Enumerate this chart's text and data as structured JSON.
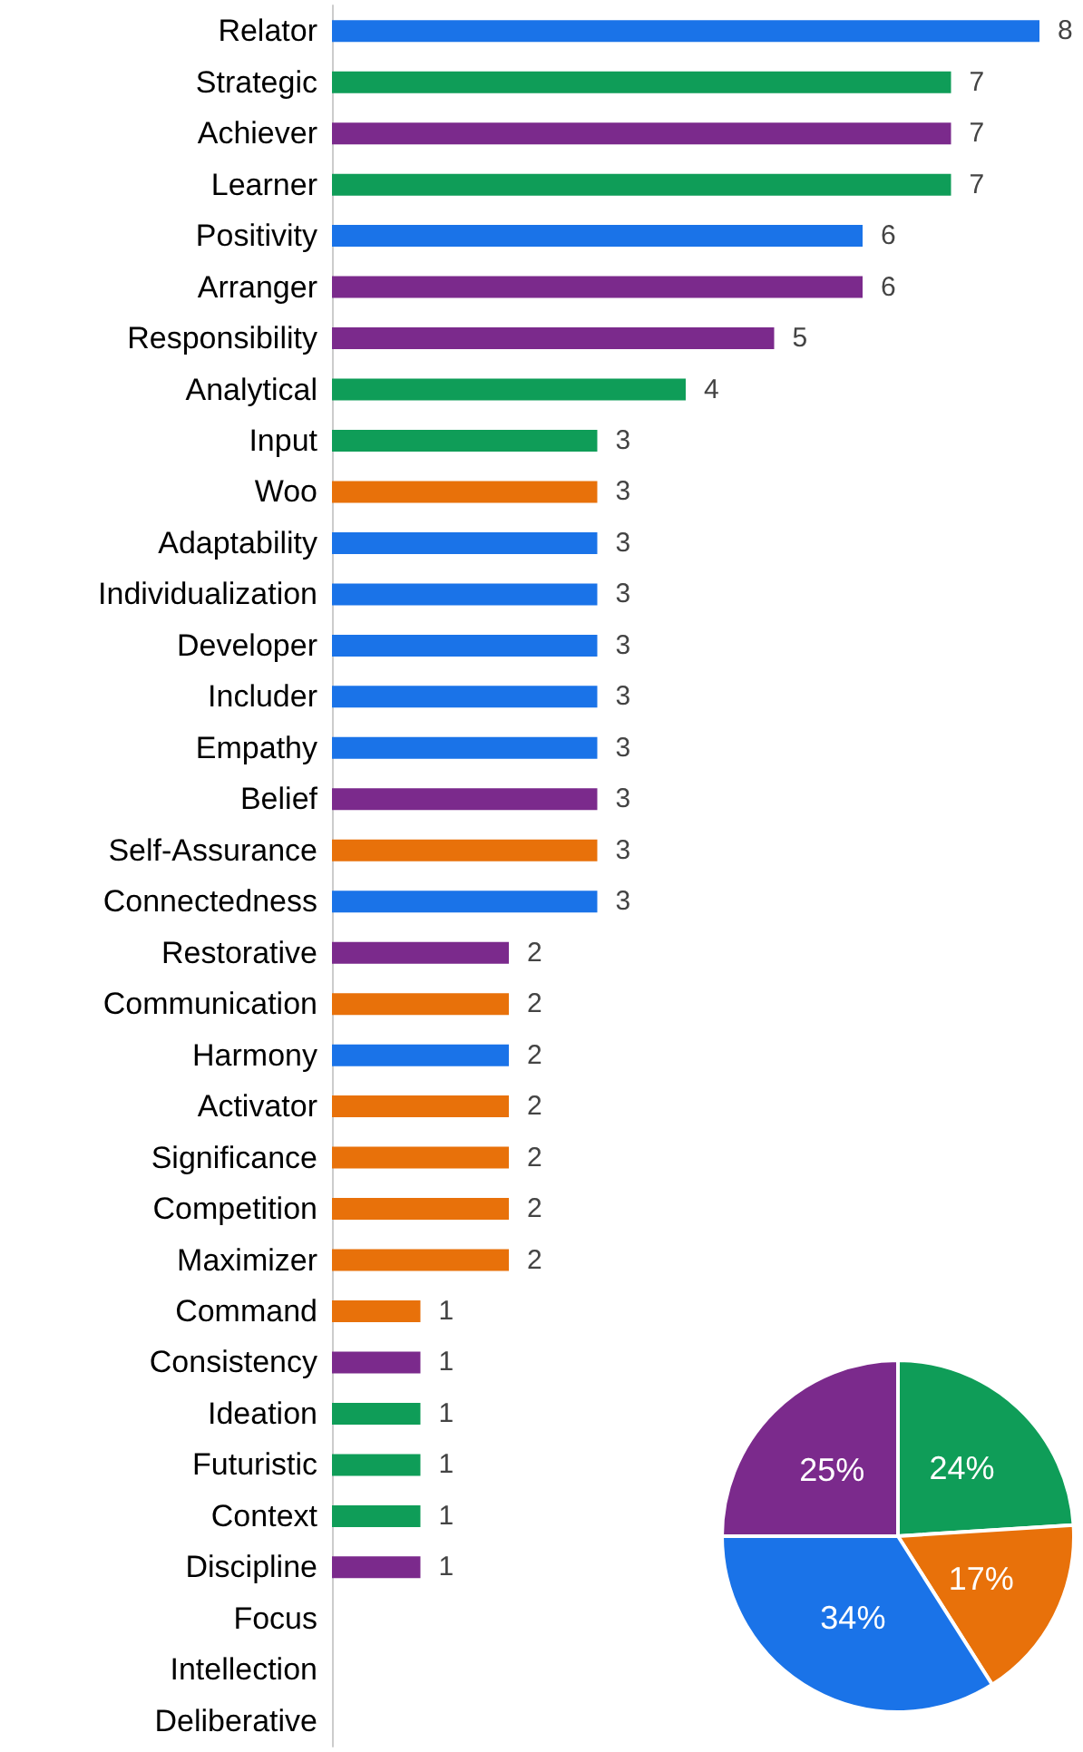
{
  "chart_data": [
    {
      "type": "bar",
      "orientation": "horizontal",
      "categories": [
        "Relator",
        "Strategic",
        "Achiever",
        "Learner",
        "Positivity",
        "Arranger",
        "Responsibility",
        "Analytical",
        "Input",
        "Woo",
        "Adaptability",
        "Individualization",
        "Developer",
        "Includer",
        "Empathy",
        "Belief",
        "Self-Assurance",
        "Connectedness",
        "Restorative",
        "Communication",
        "Harmony",
        "Activator",
        "Significance",
        "Competition",
        "Maximizer",
        "Command",
        "Consistency",
        "Ideation",
        "Futuristic",
        "Context",
        "Discipline",
        "Focus",
        "Intellection",
        "Deliberative"
      ],
      "values": [
        8,
        7,
        7,
        7,
        6,
        6,
        5,
        4,
        3,
        3,
        3,
        3,
        3,
        3,
        3,
        3,
        3,
        3,
        2,
        2,
        2,
        2,
        2,
        2,
        2,
        1,
        1,
        1,
        1,
        1,
        1,
        0,
        0,
        0
      ],
      "value_labels": [
        "8",
        "7",
        "7",
        "7",
        "6",
        "6",
        "5",
        "4",
        "3",
        "3",
        "3",
        "3",
        "3",
        "3",
        "3",
        "3",
        "3",
        "3",
        "2",
        "2",
        "2",
        "2",
        "2",
        "2",
        "2",
        "1",
        "1",
        "1",
        "1",
        "1",
        "1",
        null,
        null,
        null
      ],
      "colors": [
        "#1a73e8",
        "#0f9d58",
        "#7b2a8c",
        "#0f9d58",
        "#1a73e8",
        "#7b2a8c",
        "#7b2a8c",
        "#0f9d58",
        "#0f9d58",
        "#e8710a",
        "#1a73e8",
        "#1a73e8",
        "#1a73e8",
        "#1a73e8",
        "#1a73e8",
        "#7b2a8c",
        "#e8710a",
        "#1a73e8",
        "#7b2a8c",
        "#e8710a",
        "#1a73e8",
        "#e8710a",
        "#e8710a",
        "#e8710a",
        "#e8710a",
        "#e8710a",
        "#7b2a8c",
        "#0f9d58",
        "#0f9d58",
        "#0f9d58",
        "#7b2a8c",
        "#0f9d58",
        "#7b2a8c",
        "#1a73e8"
      ],
      "grid": false
    },
    {
      "type": "pie",
      "categories": [
        null,
        null,
        null,
        null
      ],
      "values": [
        24,
        17,
        34,
        25
      ],
      "value_labels": [
        "24%",
        "17%",
        "34%",
        "25%"
      ],
      "colors": [
        "#0f9d58",
        "#e8710a",
        "#1a73e8",
        "#7b2a8c"
      ]
    }
  ]
}
